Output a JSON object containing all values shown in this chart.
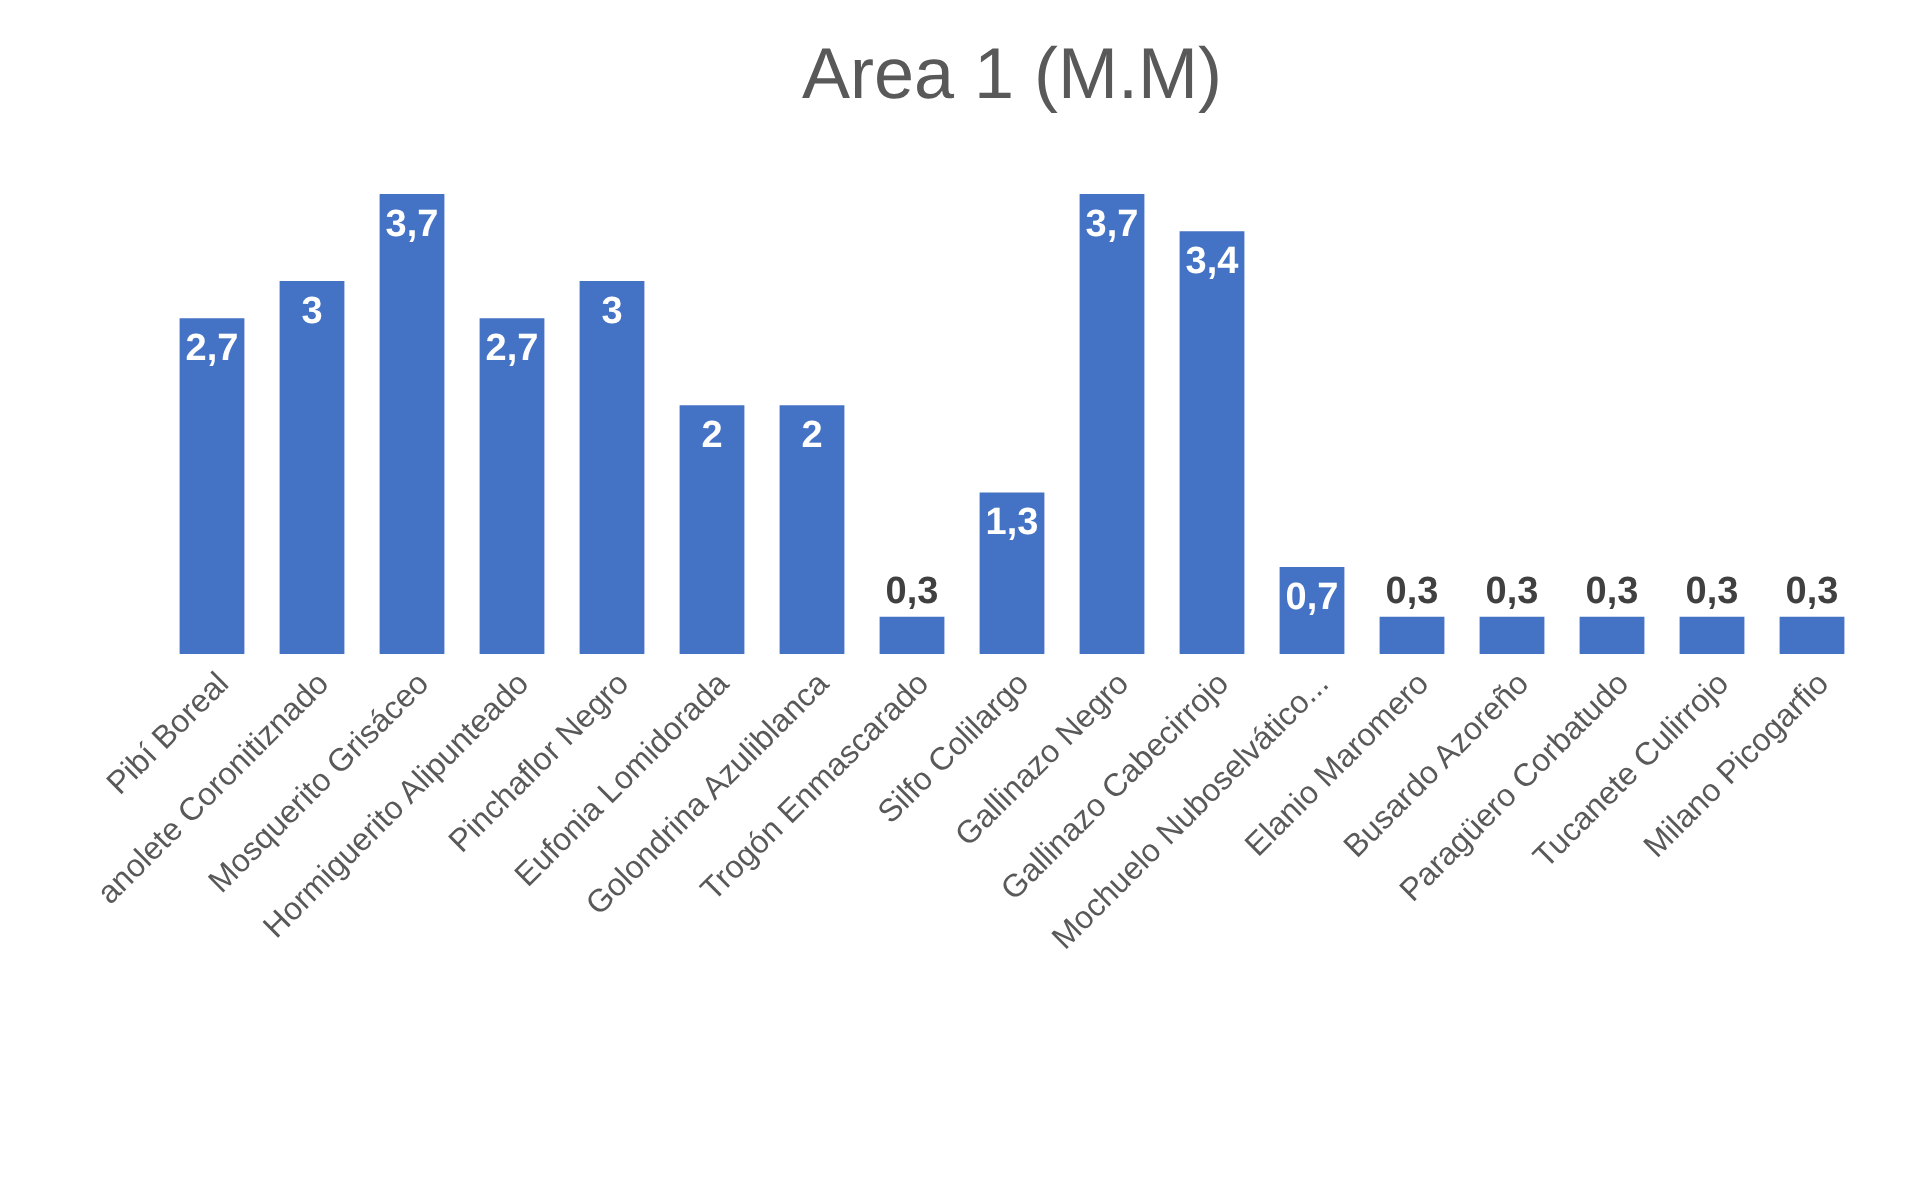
{
  "chart_data": {
    "type": "bar",
    "title": "Area 1 (M.M)",
    "categories": [
      "Pibí Boreal",
      "anolete Coronitiznado",
      "Mosquerito Grisáceo",
      "Hormiguerito Alipunteado",
      "Pinchaflor Negro",
      "Eufonia Lomidorada",
      "Golondrina Azuliblanca",
      "Trogón Enmascarado",
      "Silfo Colilargo",
      "Gallinazo Negro",
      "Gallinazo Cabecirrojo",
      "Mochuelo Nuboselvático...",
      "Elanio Maromero",
      "Busardo Azoreño",
      "Paragüero Corbatudo",
      "Tucanete Culirrojo",
      "Milano Picogarfio"
    ],
    "values": [
      2.7,
      3,
      3.7,
      2.7,
      3,
      2,
      2,
      0.3,
      1.3,
      3.7,
      3.4,
      0.7,
      0.3,
      0.3,
      0.3,
      0.3,
      0.3
    ],
    "value_labels": [
      "2,7",
      "3",
      "3,7",
      "2,7",
      "3",
      "2",
      "2",
      "0,3",
      "1,3",
      "3,7",
      "3,4",
      "0,7",
      "0,3",
      "0,3",
      "0,3",
      "0,3",
      "0,3"
    ],
    "color": "#4472c4"
  }
}
